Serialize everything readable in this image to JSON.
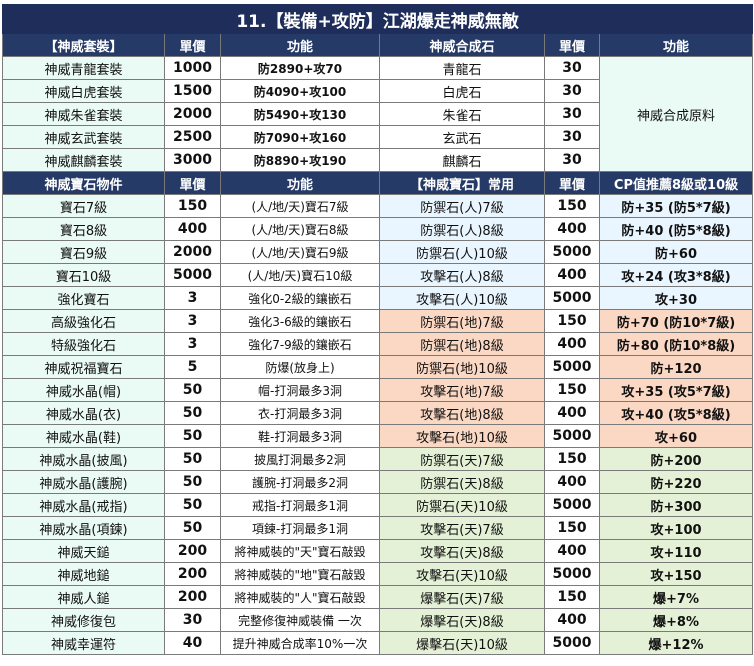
{
  "title": "11.【裝備+攻防】江湖爆走神威無敵",
  "section1": {
    "headers": [
      "【神威套裝】",
      "單價",
      "功能",
      "神威合成石",
      "單價",
      "功能"
    ],
    "rows": [
      {
        "name": "神威青龍套裝",
        "price": "1000",
        "func": "防2890+攻70",
        "stone": "青龍石",
        "sprice": "30"
      },
      {
        "name": "神威白虎套裝",
        "price": "1500",
        "func": "防4090+攻100",
        "stone": "白虎石",
        "sprice": "30"
      },
      {
        "name": "神威朱雀套裝",
        "price": "2000",
        "func": "防5490+攻130",
        "stone": "朱雀石",
        "sprice": "30"
      },
      {
        "name": "神威玄武套裝",
        "price": "2500",
        "func": "防7090+攻160",
        "stone": "玄武石",
        "sprice": "30"
      },
      {
        "name": "神威麒麟套裝",
        "price": "3000",
        "func": "防8890+攻190",
        "stone": "麒麟石",
        "sprice": "30"
      }
    ],
    "note": "神威合成原料"
  },
  "section2": {
    "headers": [
      "神威寶石物件",
      "單價",
      "功能",
      "【神威寶石】常用",
      "單價",
      "CP值推薦8級或10級"
    ],
    "rows": [
      {
        "name": "寶石7級",
        "price": "150",
        "func": "(人/地/天)寶石7級",
        "stone": "防禦石(人)7級",
        "sprice": "150",
        "cp": "防+35 (防5*7級)"
      },
      {
        "name": "寶石8級",
        "price": "400",
        "func": "(人/地/天)寶石8級",
        "stone": "防禦石(人)8級",
        "sprice": "400",
        "cp": "防+40 (防5*8級)"
      },
      {
        "name": "寶石9級",
        "price": "2000",
        "func": "(人/地/天)寶石9級",
        "stone": "防禦石(人)10級",
        "sprice": "5000",
        "cp": "防+60"
      },
      {
        "name": "寶石10級",
        "price": "5000",
        "func": "(人/地/天)寶石10級",
        "stone": "攻擊石(人)8級",
        "sprice": "400",
        "cp": "攻+24 (攻3*8級)"
      },
      {
        "name": "強化寶石",
        "price": "3",
        "func": "強化0-2級的鑲嵌石",
        "stone": "攻擊石(人)10級",
        "sprice": "5000",
        "cp": "攻+30"
      },
      {
        "name": "高級強化石",
        "price": "3",
        "func": "強化3-6級的鑲嵌石",
        "stone": "防禦石(地)7級",
        "sprice": "150",
        "cp": "防+70 (防10*7級)"
      },
      {
        "name": "特級強化石",
        "price": "3",
        "func": "強化7-9級的鑲嵌石",
        "stone": "防禦石(地)8級",
        "sprice": "400",
        "cp": "防+80 (防10*8級)"
      },
      {
        "name": "神威祝福寶石",
        "price": "5",
        "func": "防爆(放身上)",
        "stone": "防禦石(地)10級",
        "sprice": "5000",
        "cp": "防+120"
      },
      {
        "name": "神威水晶(帽)",
        "price": "50",
        "func": "帽-打洞最多3洞",
        "stone": "攻擊石(地)7級",
        "sprice": "150",
        "cp": "攻+35 (攻5*7級)"
      },
      {
        "name": "神威水晶(衣)",
        "price": "50",
        "func": "衣-打洞最多3洞",
        "stone": "攻擊石(地)8級",
        "sprice": "400",
        "cp": "攻+40 (攻5*8級)"
      },
      {
        "name": "神威水晶(鞋)",
        "price": "50",
        "func": "鞋-打洞最多3洞",
        "stone": "攻擊石(地)10級",
        "sprice": "5000",
        "cp": "攻+60"
      },
      {
        "name": "神威水晶(披風)",
        "price": "50",
        "func": "披風打洞最多2洞",
        "stone": "防禦石(天)7級",
        "sprice": "150",
        "cp": "防+200"
      },
      {
        "name": "神威水晶(護腕)",
        "price": "50",
        "func": "護腕-打洞最多2洞",
        "stone": "防禦石(天)8級",
        "sprice": "400",
        "cp": "防+220"
      },
      {
        "name": "神威水晶(戒指)",
        "price": "50",
        "func": "戒指-打洞最多1洞",
        "stone": "防禦石(天)10級",
        "sprice": "5000",
        "cp": "防+300"
      },
      {
        "name": "神威水晶(項鍊)",
        "price": "50",
        "func": "項鍊-打洞最多1洞",
        "stone": "攻擊石(天)7級",
        "sprice": "150",
        "cp": "攻+100"
      },
      {
        "name": "神威天鎚",
        "price": "200",
        "func": "將神威裝的\"天\"寶石敲毀",
        "stone": "攻擊石(天)8級",
        "sprice": "400",
        "cp": "攻+110"
      },
      {
        "name": "神威地鎚",
        "price": "200",
        "func": "將神威裝的\"地\"寶石敲毀",
        "stone": "攻擊石(天)10級",
        "sprice": "5000",
        "cp": "攻+150"
      },
      {
        "name": "神威人鎚",
        "price": "200",
        "func": "將神威裝的\"人\"寶石敲毀",
        "stone": "爆擊石(天)7級",
        "sprice": "150",
        "cp": "爆+7%"
      },
      {
        "name": "神威修復包",
        "price": "30",
        "func": "完整修復神威裝備 一次",
        "stone": "爆擊石(天)8級",
        "sprice": "400",
        "cp": "爆+8%"
      },
      {
        "name": "神威幸運符",
        "price": "40",
        "func": "提升神威合成率10%一次",
        "stone": "爆擊石(天)10級",
        "sprice": "5000",
        "cp": "爆+12%"
      }
    ]
  },
  "colors": {
    "header_bg": "#253a66",
    "title_bg": "#1f2d5a",
    "mint": "#eafaf5",
    "light_blue": "#eaf6ff",
    "peach": "#fbd8c4",
    "light_green": "#e4f1d6"
  }
}
